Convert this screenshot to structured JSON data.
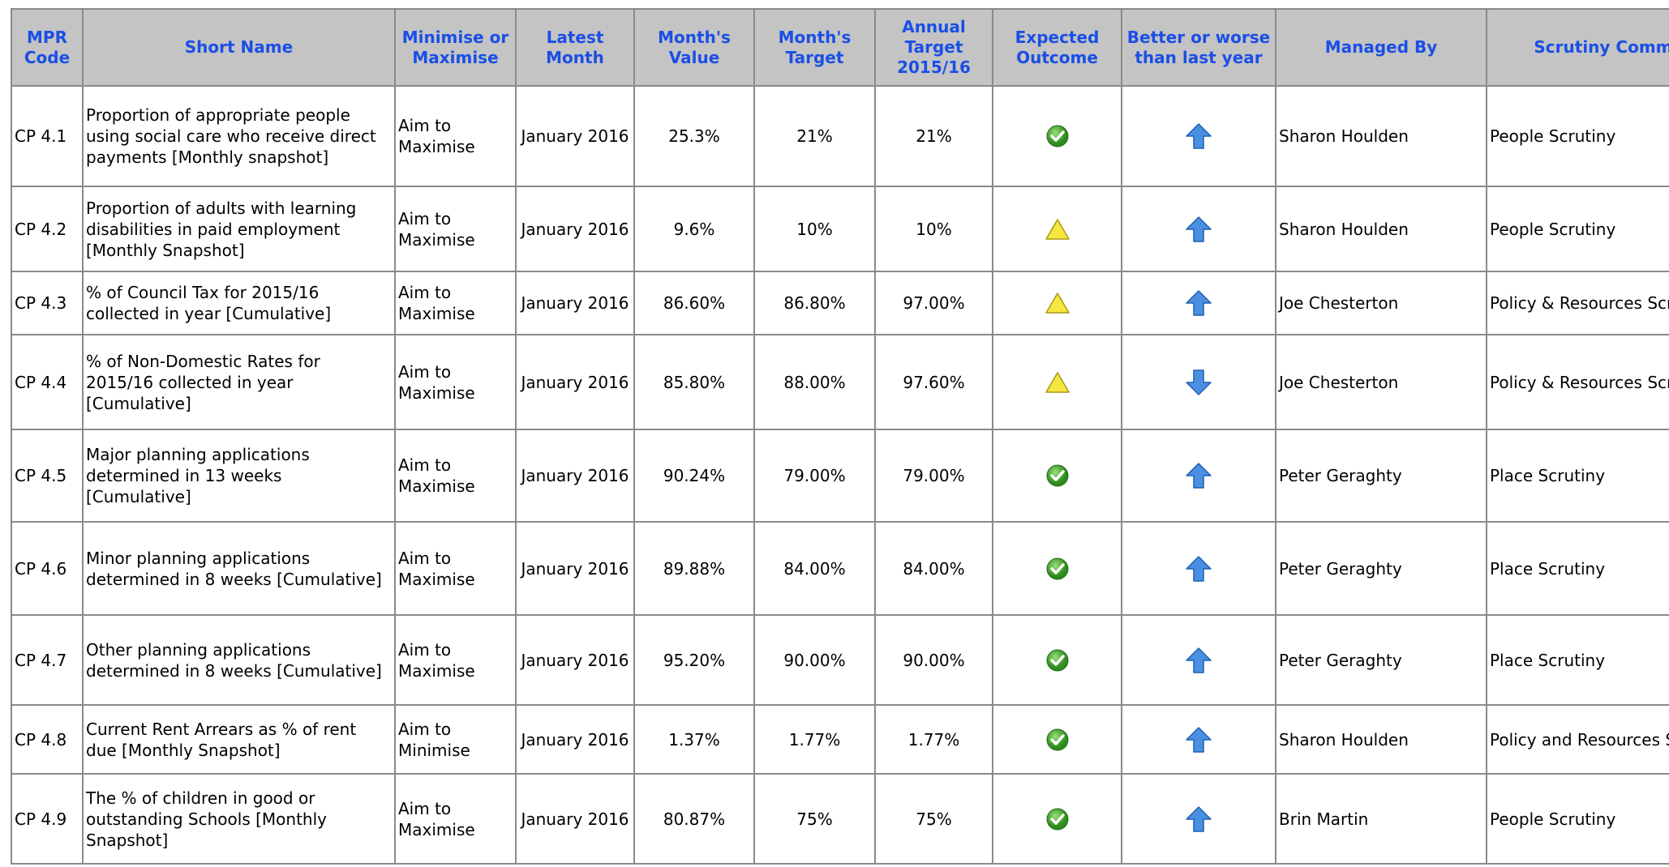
{
  "table": {
    "headers": [
      "MPR Code",
      "Short Name",
      "Minimise or Maximise",
      "Latest Month",
      "Month's Value",
      "Month's Target",
      "Annual Target 2015/16",
      "Expected Outcome",
      "Better or worse than last year",
      "Managed By",
      "Scrutiny Committee"
    ],
    "rows": [
      {
        "code": "CP 4.1",
        "name": "Proportion of appropriate people using social care who receive direct payments [Monthly snapshot]",
        "aim": "Aim to Maximise",
        "month": "January 2016",
        "value": "25.3%",
        "target": "21%",
        "annual": "21%",
        "outcome": "green",
        "trend": "up",
        "manager": "Sharon Houlden",
        "committee": "People Scrutiny"
      },
      {
        "code": "CP 4.2",
        "name": "Proportion of adults with learning disabilities in paid employment [Monthly Snapshot]",
        "aim": "Aim to Maximise",
        "month": "January 2016",
        "value": "9.6%",
        "target": "10%",
        "annual": "10%",
        "outcome": "amber",
        "trend": "up",
        "manager": "Sharon Houlden",
        "committee": "People Scrutiny"
      },
      {
        "code": "CP 4.3",
        "name": "% of Council Tax for 2015/16 collected in year [Cumulative]",
        "aim": "Aim to Maximise",
        "month": "January 2016",
        "value": "86.60%",
        "target": "86.80%",
        "annual": "97.00%",
        "outcome": "amber",
        "trend": "up",
        "manager": "Joe Chesterton",
        "committee": "Policy & Resources Scrutiny"
      },
      {
        "code": "CP 4.4",
        "name": "% of Non-Domestic Rates for 2015/16 collected in year [Cumulative]",
        "aim": "Aim to Maximise",
        "month": "January 2016",
        "value": "85.80%",
        "target": "88.00%",
        "annual": "97.60%",
        "outcome": "amber",
        "trend": "down",
        "manager": "Joe Chesterton",
        "committee": "Policy & Resources Scrutiny"
      },
      {
        "code": "CP 4.5",
        "name": "Major planning applications determined in 13 weeks [Cumulative]",
        "aim": "Aim to Maximise",
        "month": "January 2016",
        "value": "90.24%",
        "target": "79.00%",
        "annual": "79.00%",
        "outcome": "green",
        "trend": "up",
        "manager": "Peter Geraghty",
        "committee": "Place Scrutiny"
      },
      {
        "code": "CP 4.6",
        "name": "Minor planning applications determined in 8 weeks [Cumulative]",
        "aim": "Aim to Maximise",
        "month": "January 2016",
        "value": "89.88%",
        "target": "84.00%",
        "annual": "84.00%",
        "outcome": "green",
        "trend": "up",
        "manager": "Peter Geraghty",
        "committee": "Place Scrutiny"
      },
      {
        "code": "CP 4.7",
        "name": "Other planning applications determined in 8 weeks [Cumulative]",
        "aim": "Aim to Maximise",
        "month": "January 2016",
        "value": "95.20%",
        "target": "90.00%",
        "annual": "90.00%",
        "outcome": "green",
        "trend": "up",
        "manager": "Peter Geraghty",
        "committee": "Place Scrutiny"
      },
      {
        "code": "CP 4.8",
        "name": "Current Rent Arrears as % of rent due [Monthly Snapshot]",
        "aim": "Aim to Minimise",
        "month": "January 2016",
        "value": "1.37%",
        "target": "1.77%",
        "annual": "1.77%",
        "outcome": "green",
        "trend": "up",
        "manager": "Sharon Houlden",
        "committee": "Policy and Resources Scrutiny"
      },
      {
        "code": "CP 4.9",
        "name": "The %  of children in good or outstanding Schools [Monthly Snapshot]",
        "aim": "Aim to Maximise",
        "month": "January 2016",
        "value": "80.87%",
        "target": "75%",
        "annual": "75%",
        "outcome": "green",
        "trend": "up",
        "manager": "Brin Martin",
        "committee": "People Scrutiny"
      }
    ]
  }
}
